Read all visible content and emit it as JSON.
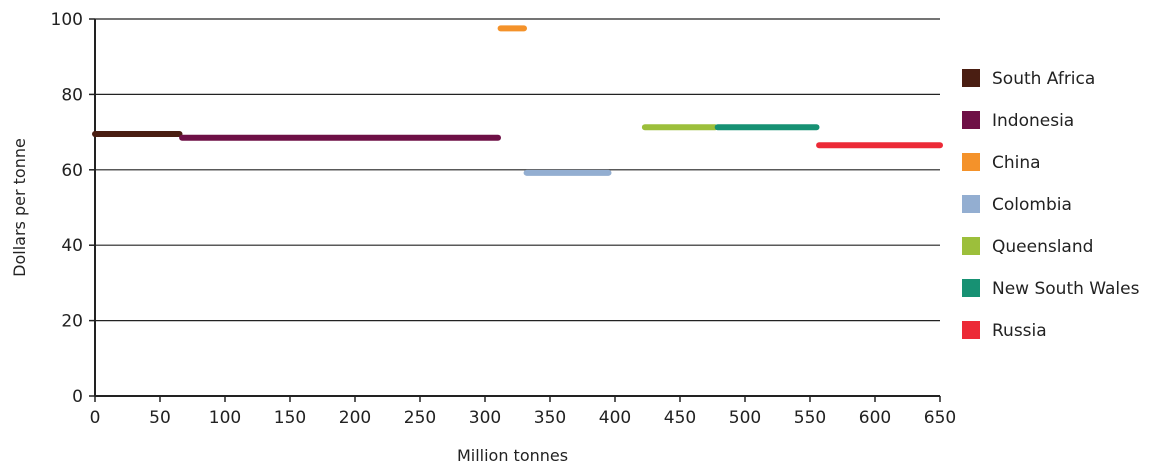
{
  "chart_data": {
    "type": "bar",
    "title": "",
    "xlabel": "Million tonnes",
    "ylabel": "Dollars per tonne",
    "xlim": [
      0,
      650
    ],
    "ylim": [
      0,
      100
    ],
    "x_ticks": [
      0,
      50,
      100,
      150,
      200,
      250,
      300,
      350,
      400,
      450,
      500,
      550,
      600,
      650
    ],
    "y_ticks": [
      0,
      20,
      40,
      60,
      80,
      100
    ],
    "grid": "horizontal",
    "legend_position": "right",
    "series": [
      {
        "name": "South Africa",
        "color": "#4a1e12",
        "x_start": 0,
        "x_end": 65,
        "value": 69.5
      },
      {
        "name": "Indonesia",
        "color": "#6e1046",
        "x_start": 67,
        "x_end": 310,
        "value": 68.5
      },
      {
        "name": "China",
        "color": "#f4922a",
        "x_start": 312,
        "x_end": 330,
        "value": 97.5
      },
      {
        "name": "Colombia",
        "color": "#93aed1",
        "x_start": 332,
        "x_end": 395,
        "value": 59.2
      },
      {
        "name": "Queensland",
        "color": "#9cbf3b",
        "x_start": 423,
        "x_end": 477,
        "value": 71.3
      },
      {
        "name": "New South Wales",
        "color": "#179173",
        "x_start": 479,
        "x_end": 555,
        "value": 71.3
      },
      {
        "name": "Russia",
        "color": "#ec2a37",
        "x_start": 557,
        "x_end": 650,
        "value": 66.5
      }
    ]
  }
}
